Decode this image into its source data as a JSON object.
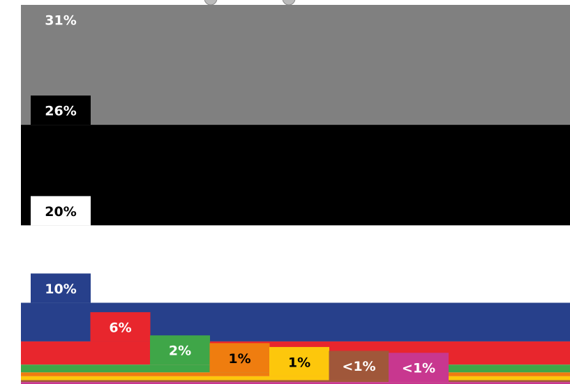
{
  "chart_data": {
    "type": "stacked_band",
    "series": [
      {
        "color": "#808080",
        "label_color": "#ffffff",
        "values": [
          31
        ],
        "value_labels": [
          "31%"
        ]
      },
      {
        "color": "#000000",
        "label_color": "#ffffff",
        "values": [
          26
        ],
        "value_labels": [
          "26%"
        ]
      },
      {
        "color": "#ffffff",
        "label_color": "#000000",
        "values": [
          20
        ],
        "value_labels": [
          "20%"
        ]
      },
      {
        "color": "#27408b",
        "label_color": "#ffffff",
        "values": [
          10
        ],
        "value_labels": [
          "10%"
        ]
      },
      {
        "color": "#e8262d",
        "label_color": "#ffffff",
        "values": [
          6
        ],
        "value_labels": [
          "6%"
        ]
      },
      {
        "color": "#3fa648",
        "label_color": "#ffffff",
        "values": [
          2
        ],
        "value_labels": [
          "2%"
        ]
      },
      {
        "color": "#ef7d0f",
        "label_color": "#000000",
        "values": [
          1
        ],
        "value_labels": [
          "1%"
        ]
      },
      {
        "color": "#fdc70c",
        "label_color": "#000000",
        "values": [
          1
        ],
        "value_labels": [
          "1%"
        ]
      },
      {
        "color": "#a0573a",
        "label_color": "#ffffff",
        "values": [
          0.5
        ],
        "value_labels": [
          "<1%"
        ]
      },
      {
        "color": "#c8378f",
        "label_color": "#ffffff",
        "values": [
          0.5
        ],
        "value_labels": [
          "<1%"
        ]
      }
    ]
  }
}
